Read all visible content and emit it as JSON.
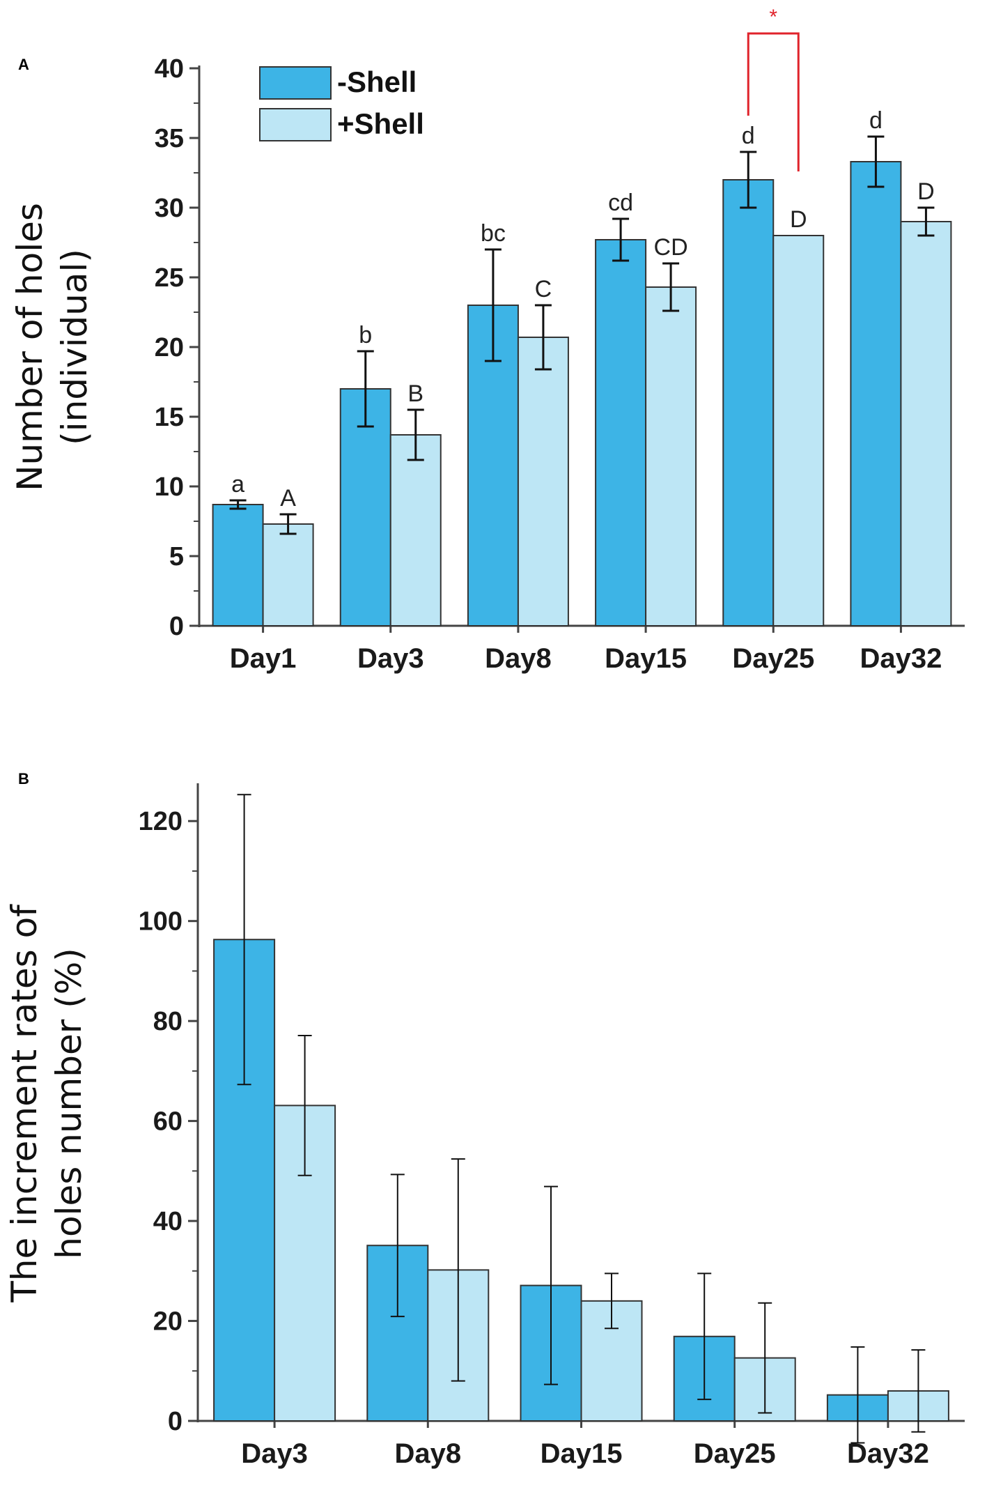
{
  "chart_data": [
    {
      "panel": "A",
      "type": "bar",
      "title": "",
      "xlabel": "",
      "ylabel": [
        "Number of holes",
        "(individual)"
      ],
      "categories": [
        "Day1",
        "Day3",
        "Day8",
        "Day15",
        "Day25",
        "Day32"
      ],
      "ylim": [
        0,
        40
      ],
      "yticks": [
        0,
        5,
        10,
        15,
        20,
        25,
        30,
        35,
        40
      ],
      "legend": "top-left",
      "series": [
        {
          "name": "-Shell",
          "color": "#3db4e6",
          "values": [
            8.7,
            17.0,
            23.0,
            27.7,
            32.0,
            33.3
          ],
          "errors": [
            0.3,
            2.7,
            4.0,
            1.5,
            2.0,
            1.8
          ],
          "labels": [
            "a",
            "b",
            "bc",
            "cd",
            "d",
            "d"
          ]
        },
        {
          "name": "+Shell",
          "color": "#bde6f5",
          "values": [
            7.3,
            13.7,
            20.7,
            24.3,
            28.0,
            29.0
          ],
          "errors": [
            0.7,
            1.8,
            2.3,
            1.7,
            0,
            1.0
          ],
          "labels": [
            "A",
            "B",
            "C",
            "CD",
            "D",
            "D"
          ]
        }
      ],
      "annotations": [
        {
          "text": "*",
          "category": "Day25",
          "color": "#e0232b"
        }
      ]
    },
    {
      "panel": "B",
      "type": "bar",
      "title": "",
      "xlabel": "",
      "ylabel": [
        "The increment rates of",
        "holes number (%)"
      ],
      "categories": [
        "Day3",
        "Day8",
        "Day15",
        "Day25",
        "Day32"
      ],
      "ylim": [
        0,
        127
      ],
      "yticks": [
        0,
        20,
        40,
        60,
        80,
        100,
        120
      ],
      "series": [
        {
          "name": "-Shell",
          "color": "#3db4e6",
          "values": [
            96.3,
            35.1,
            27.1,
            16.9,
            5.2
          ],
          "errors": [
            29.0,
            14.2,
            19.8,
            12.6,
            9.6
          ]
        },
        {
          "name": "+Shell",
          "color": "#bde6f5",
          "values": [
            63.1,
            30.2,
            24.0,
            12.6,
            6.0
          ],
          "errors": [
            14.0,
            22.2,
            5.5,
            11.0,
            8.2
          ]
        }
      ]
    }
  ]
}
